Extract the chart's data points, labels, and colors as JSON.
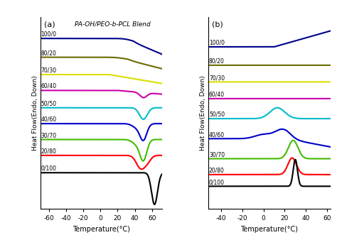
{
  "title_a": "(a)",
  "title_b": "(b)",
  "suptitle": "PA-OH/PEO-b-PCL Blend",
  "ylabel": "Heat Flow(Endo, Down)",
  "xlabel": "Temperature(°C)",
  "labels": [
    "100/0",
    "80/20",
    "70/30",
    "60/40",
    "50/50",
    "40/60",
    "30/70",
    "20/80",
    "0/100"
  ],
  "colors": [
    "#00008B",
    "#6B6B00",
    "#DDDD00",
    "#CC00AA",
    "#00BBCC",
    "#0000CC",
    "#44BB00",
    "#FF0000",
    "#000000"
  ],
  "panel_a": {
    "xlim": [
      -70,
      72
    ],
    "xticks": [
      -60,
      -40,
      -20,
      0,
      20,
      40,
      60
    ],
    "offsets": [
      9.0,
      7.7,
      6.5,
      5.4,
      4.2,
      3.1,
      2.0,
      0.9,
      -0.3
    ],
    "baseline_slope_start": [
      30,
      30,
      15,
      null,
      null,
      null,
      null,
      null,
      null
    ],
    "baseline_slope_rate": [
      0.035,
      0.03,
      0.02,
      0,
      0,
      0,
      0,
      0,
      0
    ]
  },
  "panel_b": {
    "xlim": [
      -52,
      63
    ],
    "xticks": [
      -40,
      -20,
      0,
      20,
      40,
      60
    ],
    "offsets": [
      8.2,
      7.1,
      6.1,
      5.1,
      3.9,
      2.7,
      1.5,
      0.55,
      -0.15
    ]
  }
}
